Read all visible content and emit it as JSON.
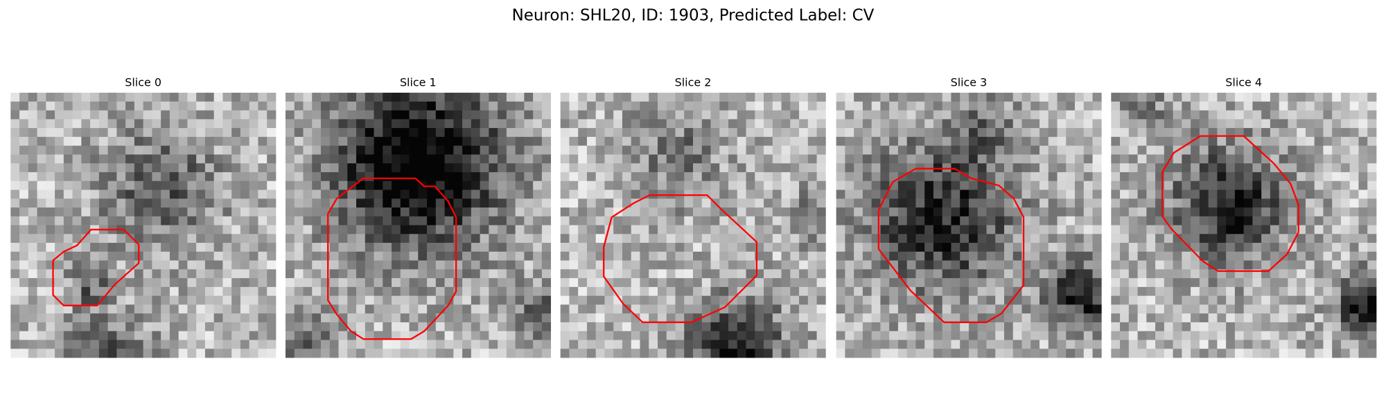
{
  "title": "Neuron: SHL20, ID: 1903, Predicted Label: CV",
  "panels": [
    {
      "title": "Slice 0"
    },
    {
      "title": "Slice 1"
    },
    {
      "title": "Slice 2"
    },
    {
      "title": "Slice 3"
    },
    {
      "title": "Slice 4"
    }
  ]
}
